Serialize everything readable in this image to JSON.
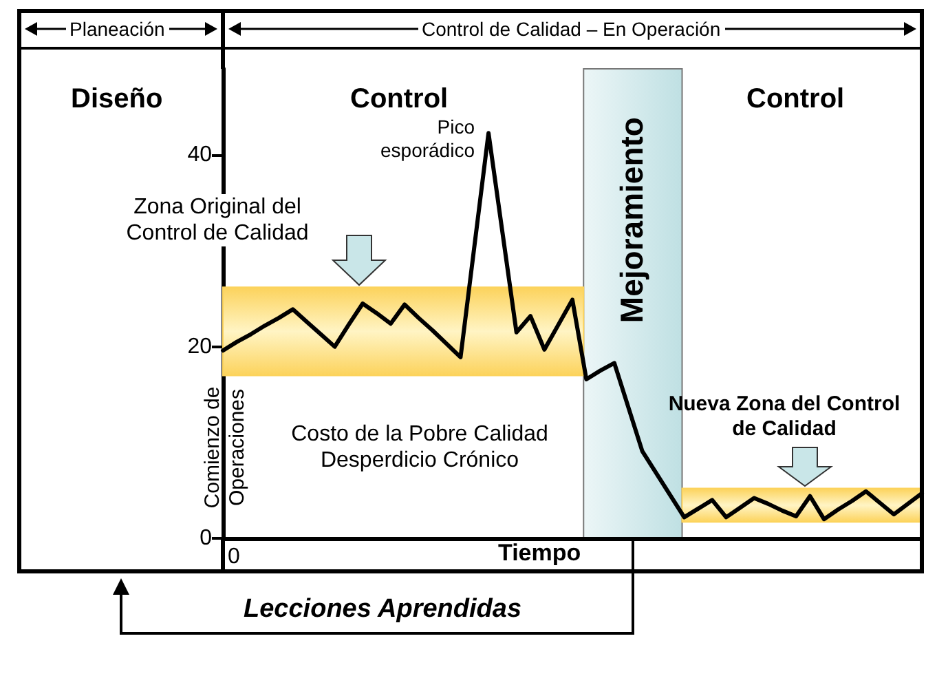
{
  "chart_data": {
    "type": "line",
    "xlabel": "Tiempo",
    "categories": [
      null,
      null,
      null,
      null,
      null,
      null,
      null,
      null,
      null,
      null,
      null,
      null,
      null,
      null,
      null,
      null,
      null,
      null,
      null,
      null,
      null,
      null,
      null,
      null,
      null,
      null,
      null,
      null,
      null,
      null,
      null,
      null,
      null,
      null,
      null,
      null,
      null,
      null,
      null,
      null,
      null,
      null,
      null,
      null,
      null,
      null,
      null,
      null,
      null,
      null,
      null
    ],
    "ylim": [
      0,
      49
    ],
    "yticks": [
      0,
      20,
      40
    ],
    "grid": false,
    "marker": "none",
    "line_style": "solid",
    "series": [
      {
        "type": "line",
        "color": "#000000",
        "values": [
          19.6,
          20.5,
          21.3,
          22.2,
          23.0,
          23.9,
          22.6,
          21.3,
          20.0,
          22.3,
          24.5,
          23.5,
          22.4,
          24.4,
          23.0,
          21.7,
          20.3,
          18.9,
          30.6,
          42.3,
          31.9,
          21.5,
          23.2,
          19.7,
          22.3,
          24.9,
          16.6,
          17.5,
          18.3,
          13.7,
          9.1,
          6.8,
          4.5,
          2.2,
          3.1,
          4.0,
          2.2,
          3.2,
          4.2,
          3.6,
          2.9,
          2.3,
          4.4,
          2.0,
          3.0,
          3.9,
          4.9,
          3.7,
          2.5,
          3.6,
          4.7
        ]
      }
    ],
    "bands": [
      {
        "axis": "y",
        "from": 17,
        "to": 26.2,
        "label": "Zona Original del Control de Calidad",
        "color": "#fcd35c"
      },
      {
        "axis": "y",
        "from": 1.7,
        "to": 5.2,
        "label": "Nueva Zona del Control de Calidad",
        "color": "#fcd35c"
      }
    ],
    "annotations": [
      "Planeación",
      "Control de Calidad – En Operación",
      "Diseño",
      "Control",
      "Control",
      "Pico esporádico",
      "Costo de la Pobre Calidad Desperdicio Crónico",
      "Comienzo de Operaciones",
      "Lecciones Aprendidas",
      "0",
      "Mejoramiento"
    ]
  }
}
